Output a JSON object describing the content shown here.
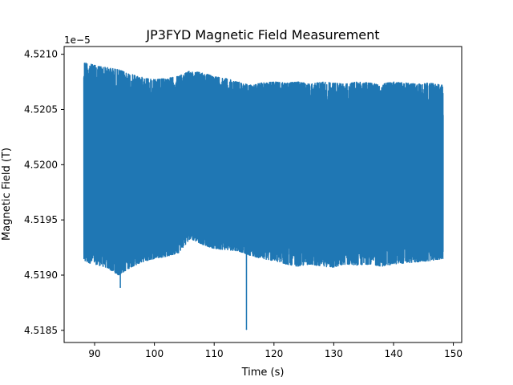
{
  "chart_data": {
    "type": "line",
    "title": "JP3FYD Magnetic Field Measurement",
    "xlabel": "Time (s)",
    "ylabel": "Magnetic Field (T)",
    "offset_label": "1e−5",
    "xlim": [
      84.9,
      151.4
    ],
    "ylim": [
      4.51839,
      4.52107
    ],
    "x_ticks": [
      90,
      100,
      110,
      120,
      130,
      140,
      150
    ],
    "x_tick_labels": [
      "90",
      "100",
      "110",
      "120",
      "130",
      "140",
      "150"
    ],
    "y_ticks": [
      4.5185,
      4.519,
      4.5195,
      4.52,
      4.5205,
      4.521
    ],
    "y_tick_labels": [
      "4.5185",
      "4.5190",
      "4.5195",
      "4.5200",
      "4.5205",
      "4.5210"
    ],
    "grid": false,
    "series": [
      {
        "color": "#1f77b4",
        "description_of_shape": "dense noisy band",
        "x_range": [
          88.2,
          148.3
        ],
        "envelope": [
          {
            "x": 88.2,
            "min": 4.51912,
            "max": 4.52093
          },
          {
            "x": 90,
            "min": 4.5191,
            "max": 4.5209
          },
          {
            "x": 92,
            "min": 4.51907,
            "max": 4.52088
          },
          {
            "x": 94,
            "min": 4.519,
            "max": 4.52086
          },
          {
            "x": 96,
            "min": 4.51907,
            "max": 4.52082
          },
          {
            "x": 98,
            "min": 4.51912,
            "max": 4.52079
          },
          {
            "x": 100,
            "min": 4.51915,
            "max": 4.52077
          },
          {
            "x": 102,
            "min": 4.51917,
            "max": 4.52078
          },
          {
            "x": 104,
            "min": 4.5192,
            "max": 4.5208
          },
          {
            "x": 106,
            "min": 4.51933,
            "max": 4.52085
          },
          {
            "x": 108,
            "min": 4.51928,
            "max": 4.52083
          },
          {
            "x": 110,
            "min": 4.51924,
            "max": 4.5208
          },
          {
            "x": 112,
            "min": 4.51923,
            "max": 4.52078
          },
          {
            "x": 114,
            "min": 4.51922,
            "max": 4.52075
          },
          {
            "x": 116,
            "min": 4.51918,
            "max": 4.52072
          },
          {
            "x": 118,
            "min": 4.51915,
            "max": 4.52074
          },
          {
            "x": 120,
            "min": 4.51913,
            "max": 4.52075
          },
          {
            "x": 122,
            "min": 4.5191,
            "max": 4.52074
          },
          {
            "x": 124,
            "min": 4.51908,
            "max": 4.52075
          },
          {
            "x": 126,
            "min": 4.5191,
            "max": 4.52073
          },
          {
            "x": 128,
            "min": 4.51908,
            "max": 4.52075
          },
          {
            "x": 130,
            "min": 4.51907,
            "max": 4.52074
          },
          {
            "x": 132,
            "min": 4.5191,
            "max": 4.52073
          },
          {
            "x": 134,
            "min": 4.51909,
            "max": 4.52075
          },
          {
            "x": 136,
            "min": 4.5191,
            "max": 4.52074
          },
          {
            "x": 138,
            "min": 4.51908,
            "max": 4.52073
          },
          {
            "x": 140,
            "min": 4.5191,
            "max": 4.52075
          },
          {
            "x": 142,
            "min": 4.51911,
            "max": 4.52074
          },
          {
            "x": 144,
            "min": 4.51912,
            "max": 4.52073
          },
          {
            "x": 146,
            "min": 4.51913,
            "max": 4.52074
          },
          {
            "x": 148.3,
            "min": 4.51915,
            "max": 4.52072
          }
        ],
        "outliers": [
          {
            "x": 94.3,
            "y": 4.51889
          },
          {
            "x": 115.4,
            "y": 4.51851
          }
        ]
      }
    ]
  }
}
